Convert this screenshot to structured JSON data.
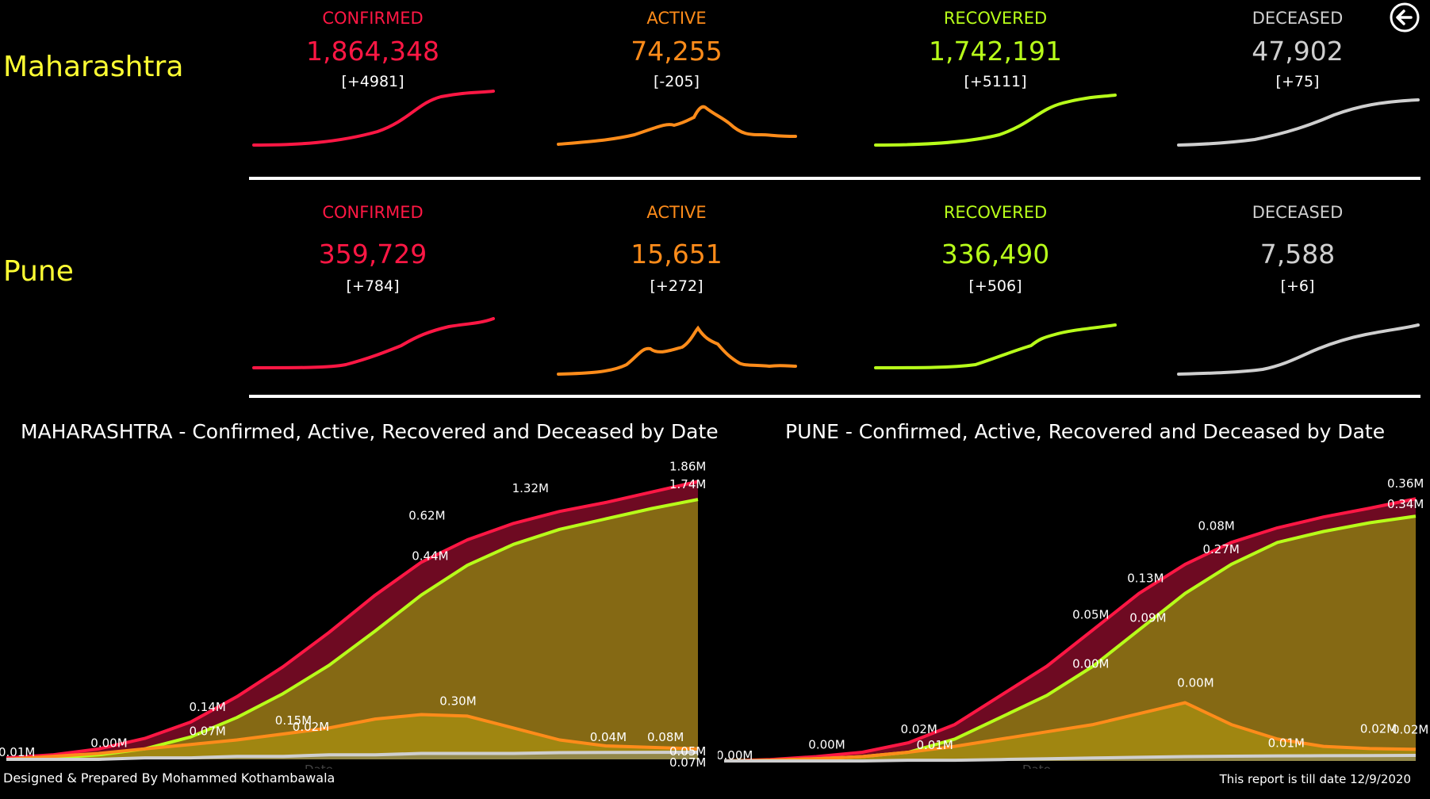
{
  "colors": {
    "confirmed": "#ff1744",
    "active": "#ff8c1a",
    "recovered": "#b8ff1a",
    "deceased": "#cfcfcf",
    "region": "#ffff33"
  },
  "icons": {
    "back": "back-arrow-icon"
  },
  "maharashtra": {
    "name": "Maharashtra",
    "confirmed": {
      "label": "CONFIRMED",
      "value": "1,864,348",
      "delta": "[+4981]"
    },
    "active": {
      "label": "ACTIVE",
      "value": "74,255",
      "delta": "[-205]"
    },
    "recovered": {
      "label": "RECOVERED",
      "value": "1,742,191",
      "delta": "[+5111]"
    },
    "deceased": {
      "label": "DECEASED",
      "value": "47,902",
      "delta": "[+75]"
    }
  },
  "pune": {
    "name": "Pune",
    "confirmed": {
      "label": "CONFIRMED",
      "value": "359,729",
      "delta": "[+784]"
    },
    "active": {
      "label": "ACTIVE",
      "value": "15,651",
      "delta": "[+272]"
    },
    "recovered": {
      "label": "RECOVERED",
      "value": "336,490",
      "delta": "[+506]"
    },
    "deceased": {
      "label": "DECEASED",
      "value": "7,588",
      "delta": "[+6]"
    }
  },
  "chart_data": [
    {
      "type": "area",
      "title": "MAHARASHTRA - Confirmed, Active, Recovered and Deceased by Date",
      "xlabel": "Date",
      "ylabel": "",
      "ylim": [
        0,
        1.9
      ],
      "series": [
        {
          "name": "Confirmed",
          "values": [
            0.01,
            0.03,
            0.07,
            0.14,
            0.25,
            0.42,
            0.62,
            0.85,
            1.1,
            1.32,
            1.47,
            1.58,
            1.66,
            1.72,
            1.79,
            1.86
          ]
        },
        {
          "name": "Recovered",
          "values": [
            0.0,
            0.01,
            0.03,
            0.07,
            0.15,
            0.28,
            0.44,
            0.63,
            0.86,
            1.1,
            1.3,
            1.44,
            1.54,
            1.61,
            1.68,
            1.74
          ]
        },
        {
          "name": "Active",
          "values": [
            0.0,
            0.02,
            0.04,
            0.07,
            0.1,
            0.13,
            0.17,
            0.21,
            0.27,
            0.3,
            0.29,
            0.21,
            0.13,
            0.09,
            0.08,
            0.07
          ]
        },
        {
          "name": "Deceased",
          "values": [
            0.0,
            0.0,
            0.0,
            0.01,
            0.01,
            0.02,
            0.02,
            0.03,
            0.03,
            0.04,
            0.04,
            0.04,
            0.045,
            0.046,
            0.047,
            0.048
          ]
        }
      ],
      "labels": [
        "0.01M",
        "0.00M",
        "0.14M",
        "0.07M",
        "0.15M",
        "0.02M",
        "0.62M",
        "0.44M",
        "0.30M",
        "1.32M",
        "0.04M",
        "0.08M",
        "1.86M",
        "1.74M",
        "0.05M",
        "0.07M"
      ]
    },
    {
      "type": "area",
      "title": "PUNE - Confirmed, Active, Recovered and Deceased by Date",
      "xlabel": "Date",
      "ylabel": "",
      "ylim": [
        0,
        0.37
      ],
      "series": [
        {
          "name": "Confirmed",
          "values": [
            0.0,
            0.002,
            0.006,
            0.012,
            0.025,
            0.05,
            0.09,
            0.13,
            0.18,
            0.23,
            0.27,
            0.3,
            0.32,
            0.335,
            0.347,
            0.36
          ]
        },
        {
          "name": "Recovered",
          "values": [
            0.0,
            0.001,
            0.003,
            0.006,
            0.012,
            0.03,
            0.06,
            0.09,
            0.13,
            0.18,
            0.23,
            0.27,
            0.3,
            0.315,
            0.327,
            0.336
          ]
        },
        {
          "name": "Active",
          "values": [
            0.0,
            0.001,
            0.003,
            0.006,
            0.012,
            0.02,
            0.03,
            0.04,
            0.05,
            0.065,
            0.08,
            0.05,
            0.03,
            0.02,
            0.017,
            0.016
          ]
        },
        {
          "name": "Deceased",
          "values": [
            0.0,
            0.0,
            0.0,
            0.0,
            0.001,
            0.001,
            0.002,
            0.003,
            0.004,
            0.005,
            0.006,
            0.0065,
            0.007,
            0.0072,
            0.0074,
            0.0076
          ]
        }
      ],
      "labels": [
        "0.00M",
        "0.00M",
        "0.02M",
        "0.01M",
        "0.05M",
        "0.00M",
        "0.13M",
        "0.09M",
        "0.00M",
        "0.08M",
        "0.27M",
        "0.01M",
        "0.02M",
        "0.36M",
        "0.34M",
        "0.02M"
      ]
    }
  ],
  "footer": {
    "credit": "Designed & Prepared By Mohammed Kothambawala",
    "date": "This report is till date 12/9/2020"
  }
}
